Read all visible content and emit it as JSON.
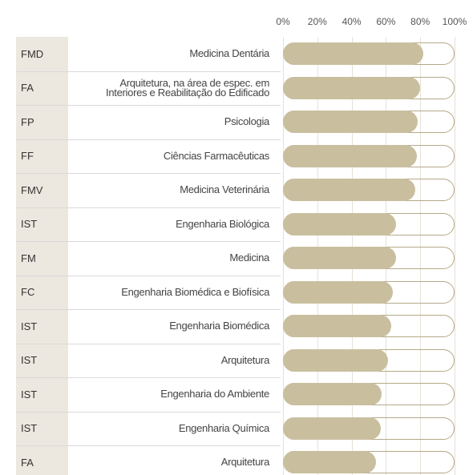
{
  "chart_data": {
    "type": "bar",
    "orientation": "horizontal",
    "codes": [
      "FMD",
      "FA",
      "FP",
      "FF",
      "FMV",
      "IST",
      "FM",
      "FC",
      "IST",
      "IST",
      "IST",
      "IST",
      "FA"
    ],
    "categories": [
      "Medicina Dentária",
      "Arquitetura, na área de espec. em\nInteriores e Reabilitação do Edificado",
      "Psicologia",
      "Ciências Farmacêuticas",
      "Medicina Veterinária",
      "Engenharia Biológica",
      "Medicina",
      "Engenharia Biomédica e Biofísica",
      "Engenharia Biomédica",
      "Arquitetura",
      "Engenharia do Ambiente",
      "Engenharia Química",
      "Arquitetura"
    ],
    "values": [
      82,
      80,
      78.5,
      78,
      77,
      66,
      66,
      64,
      63,
      61,
      57.5,
      57,
      54
    ],
    "color": "#c9bf9f",
    "xlim": [
      0,
      100
    ],
    "xticks": [
      {
        "value": 0,
        "label": "0%"
      },
      {
        "value": 20,
        "label": "20%"
      },
      {
        "value": 40,
        "label": "40%"
      },
      {
        "value": 60,
        "label": "60%"
      },
      {
        "value": 80,
        "label": "80%"
      },
      {
        "value": 100,
        "label": "100%"
      }
    ],
    "grid": true
  }
}
